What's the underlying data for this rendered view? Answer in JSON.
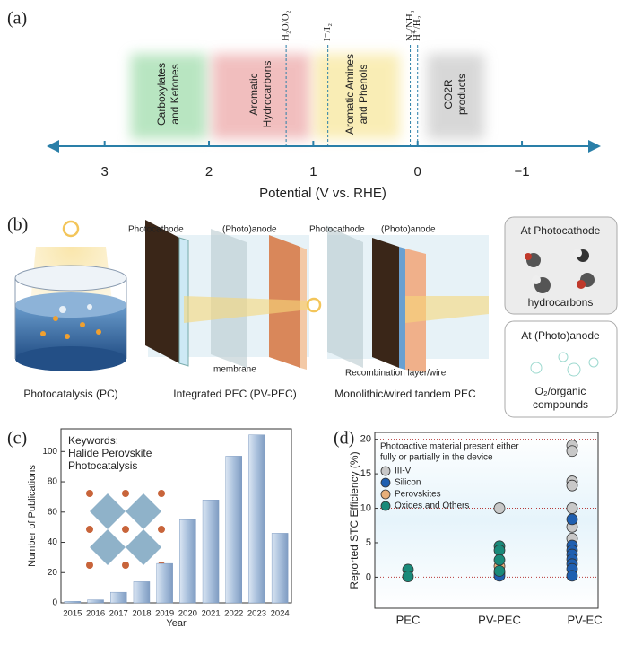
{
  "panel_labels": [
    "(a)",
    "(b)",
    "(c)",
    "(d)"
  ],
  "panel_a": {
    "xlim": [
      3.47,
      -1.67
    ],
    "xticks": [
      3,
      2,
      1,
      0,
      {
        "value": -1,
        "label": "−1"
      }
    ],
    "xlabel": "Potential (V vs. RHE)",
    "regions": [
      {
        "lines": [
          "Carboxylates",
          "and Ketones"
        ],
        "range": [
          2.75,
          2.02
        ],
        "color": "#7fd08f"
      },
      {
        "lines": [
          "Aromatic",
          "Hydrocarbons"
        ],
        "range": [
          1.97,
          1.03
        ],
        "color": "#e68a8a"
      },
      {
        "lines": [
          "Aromatic Amines",
          "and Phenols"
        ],
        "range": [
          0.99,
          0.17
        ],
        "color": "#f5df7a"
      },
      {
        "lines": [
          "CO2R",
          "products"
        ],
        "range": [
          -0.09,
          -0.64
        ],
        "color": "#b8b8b8"
      }
    ],
    "couples": [
      {
        "label": "H₂O/O₂",
        "value": 1.26
      },
      {
        "label": "I⁻/I₂",
        "value": 0.86
      },
      {
        "label": "N₂/NH₃",
        "value": 0.07
      },
      {
        "label": "H⁺/H₂",
        "value": 0
      }
    ]
  },
  "panel_b": {
    "captions": [
      "Photocatalysis (PC)",
      "Integrated PEC (PV-PEC)",
      "Monolithic/wired tandem PEC"
    ],
    "pec_labels": [
      "Photocathode",
      "(Photo)anode",
      "membrane"
    ],
    "tandem_labels": [
      "Photocathode",
      "(Photo)anode",
      "Recombination layer/wire"
    ],
    "cathode_box": {
      "title": "At Photocathode",
      "text": "hydrocarbons"
    },
    "anode_box": {
      "title": "At (Photo)anode",
      "lines": [
        "O₂/organic",
        "compounds"
      ]
    }
  },
  "chart_data": [
    {
      "type": "bar",
      "categories": [
        "2015",
        "2016",
        "2017",
        "2018",
        "2019",
        "2020",
        "2021",
        "2022",
        "2023",
        "2024"
      ],
      "values": [
        1,
        2,
        7,
        14,
        26,
        55,
        68,
        97,
        111,
        46
      ],
      "color": "#a9c0dc",
      "ylim": [
        0,
        115
      ],
      "yticks": [
        0,
        20,
        40,
        60,
        80,
        100
      ],
      "xlabel": "Year",
      "ylabel": "Number of Publications",
      "annotation": [
        "Keywords:",
        "Halide Perovskite",
        "Photocatalysis"
      ]
    },
    {
      "type": "scatter",
      "categories": [
        "PEC",
        "PV-PEC",
        "PV-EC"
      ],
      "ylim": [
        -4.5,
        21
      ],
      "yticks": [
        0,
        5,
        10,
        15,
        20
      ],
      "ylabel": "Reported STC Efficiency (%)",
      "legend_title": [
        "Photoactive material present either",
        "fully or partially in the device"
      ],
      "grid_lines": [
        0,
        10,
        20
      ],
      "grid_color": "#b83a3a",
      "series": [
        {
          "name": "III-V",
          "color": "#c8c8c8",
          "x": [
            "PV-PEC",
            "PV-EC",
            "PV-EC",
            "PV-EC",
            "PV-EC",
            "PV-EC",
            "PV-EC",
            "PV-EC"
          ],
          "values": [
            10,
            19.1,
            18.3,
            13.9,
            13.3,
            10,
            7.3,
            5.6
          ]
        },
        {
          "name": "Silicon",
          "color": "#1f5fb0",
          "x": [
            "PV-PEC",
            "PV-PEC",
            "PV-EC",
            "PV-EC",
            "PV-EC",
            "PV-EC",
            "PV-EC",
            "PV-EC",
            "PV-EC",
            "PV-EC"
          ],
          "values": [
            0.6,
            0.2,
            8.4,
            4.6,
            3.9,
            3.3,
            2.6,
            1.9,
            1.2,
            0.2
          ]
        },
        {
          "name": "Perovskites",
          "color": "#e8b07a",
          "x": [
            "PV-PEC"
          ],
          "values": [
            1.6
          ]
        },
        {
          "name": "Oxides and Others",
          "color": "#1a8a7a",
          "x": [
            "PEC",
            "PEC",
            "PV-PEC",
            "PV-PEC",
            "PV-PEC",
            "PV-PEC"
          ],
          "values": [
            1.1,
            0.1,
            4.5,
            3.9,
            2.5,
            0.9
          ]
        }
      ]
    }
  ]
}
